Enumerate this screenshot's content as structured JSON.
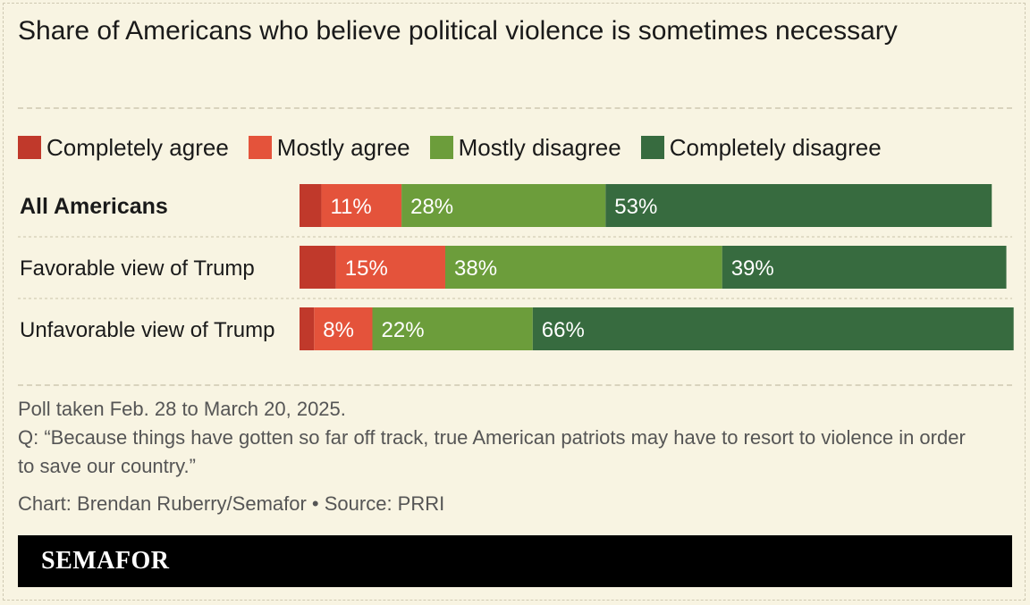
{
  "chart_data": {
    "type": "bar",
    "orientation": "horizontal",
    "stacked": true,
    "title": "Share of Americans who believe political violence is sometimes necessary",
    "categories": [
      "All Americans",
      "Favorable view of Trump",
      "Unfavorable view of Trump"
    ],
    "series": [
      {
        "name": "Completely agree",
        "color": "#c0392b",
        "values": [
          3,
          5,
          2
        ],
        "labels": [
          "",
          "",
          ""
        ]
      },
      {
        "name": "Mostly agree",
        "color": "#e4533b",
        "values": [
          11,
          15,
          8
        ],
        "labels": [
          "11%",
          "15%",
          "8%"
        ]
      },
      {
        "name": "Mostly disagree",
        "color": "#6c9d3b",
        "values": [
          28,
          38,
          22
        ],
        "labels": [
          "28%",
          "38%",
          "22%"
        ]
      },
      {
        "name": "Completely disagree",
        "color": "#376b3f",
        "values": [
          53,
          39,
          66
        ],
        "labels": [
          "53%",
          "39%",
          "66%"
        ]
      }
    ],
    "xlim": [
      0,
      100
    ],
    "grid": false,
    "legend": "top"
  },
  "footer": {
    "poll_date": "Poll taken Feb. 28 to March 20, 2025.",
    "question": "Q: “Because things have gotten so far off track, true American patriots may have to resort to violence in order to save our country.”",
    "credit": "Chart: Brendan Ruberry/Semafor • Source: PRRI"
  },
  "brand": "SEMAFOR"
}
